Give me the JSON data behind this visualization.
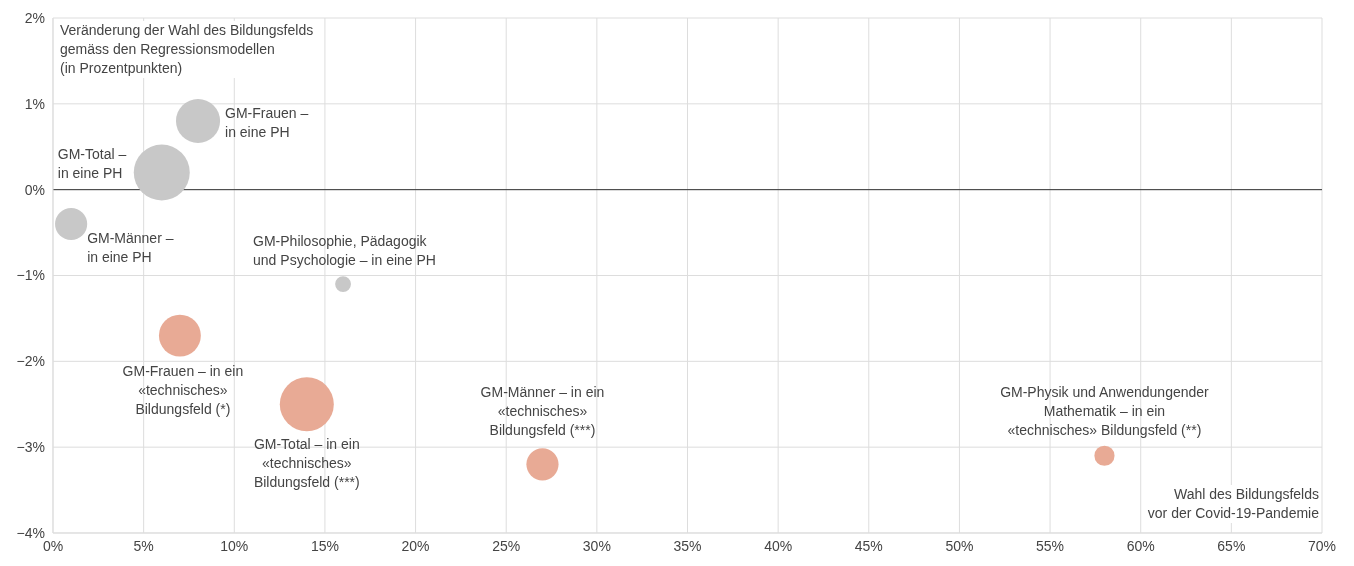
{
  "chart_data": {
    "type": "bubble",
    "ylabel": "Veränderung der Wahl des Bildungsfelds\ngemäss den Regressionsmodellen\n(in Prozentpunkten)",
    "xlabel": "Wahl des Bildungsfelds\nvor der Covid-19-Pandemie",
    "x": [
      8,
      6,
      1,
      16,
      7,
      14,
      27,
      58
    ],
    "values": [
      0.8,
      0.2,
      -0.4,
      -1.1,
      -1.7,
      -2.5,
      -3.2,
      -3.1
    ],
    "sizes": [
      0.62,
      1,
      0.33,
      0.08,
      0.56,
      0.93,
      0.33,
      0.13
    ],
    "colors": [
      "#c8c8c8",
      "#c8c8c8",
      "#c8c8c8",
      "#c8c8c8",
      "#e8aa95",
      "#e8aa95",
      "#e8aa95",
      "#e8aa95"
    ],
    "xlim": [
      0,
      70
    ],
    "xticks": [
      {
        "value": 0,
        "label": "0%"
      },
      {
        "value": 5,
        "label": "5%"
      },
      {
        "value": 10,
        "label": "10%"
      },
      {
        "value": 15,
        "label": "15%"
      },
      {
        "value": 20,
        "label": "20%"
      },
      {
        "value": 25,
        "label": "25%"
      },
      {
        "value": 30,
        "label": "30%"
      },
      {
        "value": 35,
        "label": "35%"
      },
      {
        "value": 40,
        "label": "40%"
      },
      {
        "value": 45,
        "label": "45%"
      },
      {
        "value": 50,
        "label": "50%"
      },
      {
        "value": 55,
        "label": "55%"
      },
      {
        "value": 60,
        "label": "60%"
      },
      {
        "value": 65,
        "label": "65%"
      },
      {
        "value": 70,
        "label": "70%"
      }
    ],
    "ylim": [
      -4,
      2
    ],
    "yticks": [
      {
        "value": -4,
        "label": "−4%"
      },
      {
        "value": -3,
        "label": "−3%"
      },
      {
        "value": -2,
        "label": "−2%"
      },
      {
        "value": -1,
        "label": "−1%"
      },
      {
        "value": 0,
        "label": "0%"
      },
      {
        "value": 1,
        "label": "1%"
      },
      {
        "value": 2,
        "label": "2%"
      }
    ],
    "grid": true,
    "ref_lines": [
      {
        "axis": "y",
        "value": 0,
        "color": "#333333"
      }
    ],
    "annotations": [
      {
        "text": "GM-Frauen –\nin eine PH",
        "x": 8,
        "y": 0.8
      },
      {
        "text": "GM-Total –\nin eine PH",
        "x": 6,
        "y": 0.2
      },
      {
        "text": "GM-Männer –\nin eine PH",
        "x": 1,
        "y": -0.4
      },
      {
        "text": "GM-Philosophie, Pädagogik\nund Psychologie – in eine PH",
        "x": 16,
        "y": -1.1
      },
      {
        "text": "GM-Frauen – in ein\n«technisches»\nBildungsfeld (*)",
        "x": 7,
        "y": -1.7
      },
      {
        "text": "GM-Total – in ein\n«technisches»\nBildungsfeld (***)",
        "x": 14,
        "y": -2.5
      },
      {
        "text": "GM-Männer – in ein\n«technisches»\nBildungsfeld (***)",
        "x": 27,
        "y": -3.2
      },
      {
        "text": "GM-Physik und Anwendungender\nMathematik – in ein\n«technisches» Bildungsfeld (**)",
        "x": 58,
        "y": -3.1
      }
    ]
  }
}
